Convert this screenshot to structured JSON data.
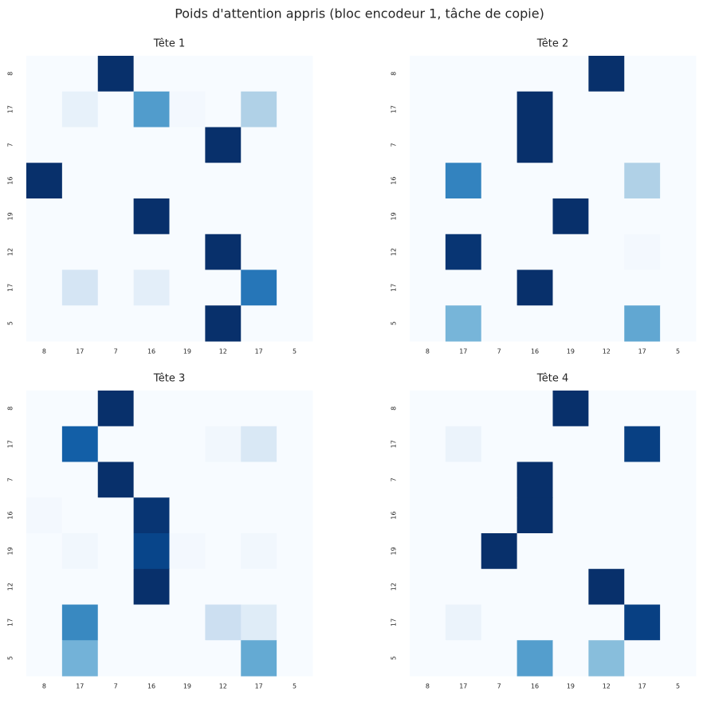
{
  "title": "Poids d'attention appris (bloc encodeur 1, tâche de copie)",
  "chart_data": [
    {
      "type": "heatmap",
      "title": "Tête 1",
      "colormap": "Blues",
      "x_categories": [
        "8",
        "17",
        "7",
        "16",
        "19",
        "12",
        "17",
        "5"
      ],
      "y_categories": [
        "8",
        "17",
        "7",
        "16",
        "19",
        "12",
        "17",
        "5"
      ],
      "values": [
        [
          0,
          0,
          1,
          0,
          0,
          0,
          0,
          0
        ],
        [
          0,
          0.08,
          0,
          0.58,
          0.02,
          0,
          0.32,
          0
        ],
        [
          0,
          0,
          0,
          0,
          0,
          1,
          0,
          0
        ],
        [
          1,
          0,
          0,
          0,
          0,
          0,
          0,
          0
        ],
        [
          0,
          0,
          0,
          1,
          0,
          0,
          0,
          0
        ],
        [
          0,
          0,
          0,
          0,
          0,
          1,
          0,
          0
        ],
        [
          0,
          0.17,
          0,
          0.1,
          0,
          0,
          0.73,
          0
        ],
        [
          0,
          0,
          0,
          0,
          0,
          1,
          0,
          0
        ]
      ]
    },
    {
      "type": "heatmap",
      "title": "Tête 2",
      "colormap": "Blues",
      "x_categories": [
        "8",
        "17",
        "7",
        "16",
        "19",
        "12",
        "17",
        "5"
      ],
      "y_categories": [
        "8",
        "17",
        "7",
        "16",
        "19",
        "12",
        "17",
        "5"
      ],
      "values": [
        [
          0,
          0,
          0,
          0,
          0,
          1,
          0,
          0
        ],
        [
          0,
          0,
          0,
          1,
          0,
          0,
          0,
          0
        ],
        [
          0,
          0,
          0,
          1,
          0,
          0,
          0,
          0
        ],
        [
          0,
          0.68,
          0,
          0,
          0,
          0,
          0.32,
          0
        ],
        [
          0,
          0,
          0,
          0,
          1,
          0,
          0,
          0
        ],
        [
          0,
          0.98,
          0,
          0,
          0,
          0,
          0.02,
          0
        ],
        [
          0,
          0,
          0,
          1,
          0,
          0,
          0,
          0
        ],
        [
          0,
          0.47,
          0,
          0,
          0,
          0,
          0.53,
          0
        ]
      ]
    },
    {
      "type": "heatmap",
      "title": "Tête 3",
      "colormap": "Blues",
      "x_categories": [
        "8",
        "17",
        "7",
        "16",
        "19",
        "12",
        "17",
        "5"
      ],
      "y_categories": [
        "8",
        "17",
        "7",
        "16",
        "19",
        "12",
        "17",
        "5"
      ],
      "values": [
        [
          0,
          0,
          1,
          0,
          0,
          0,
          0,
          0
        ],
        [
          0,
          0.82,
          0,
          0,
          0,
          0.03,
          0.15,
          0
        ],
        [
          0,
          0,
          1,
          0,
          0,
          0,
          0,
          0
        ],
        [
          0.02,
          0,
          0,
          0.98,
          0,
          0,
          0,
          0
        ],
        [
          0,
          0.03,
          0,
          0.92,
          0.02,
          0,
          0.03,
          0
        ],
        [
          0,
          0,
          0,
          1,
          0,
          0,
          0,
          0
        ],
        [
          0,
          0.66,
          0,
          0,
          0,
          0.22,
          0.12,
          0
        ],
        [
          0,
          0.48,
          0,
          0,
          0,
          0,
          0.52,
          0
        ]
      ]
    },
    {
      "type": "heatmap",
      "title": "Tête 4",
      "colormap": "Blues",
      "x_categories": [
        "8",
        "17",
        "7",
        "16",
        "19",
        "12",
        "17",
        "5"
      ],
      "y_categories": [
        "8",
        "17",
        "7",
        "16",
        "19",
        "12",
        "17",
        "5"
      ],
      "values": [
        [
          0,
          0,
          0,
          0,
          1,
          0,
          0,
          0
        ],
        [
          0,
          0.06,
          0,
          0,
          0,
          0,
          0.94,
          0
        ],
        [
          0,
          0,
          0,
          1,
          0,
          0,
          0,
          0
        ],
        [
          0,
          0,
          0,
          1,
          0,
          0,
          0,
          0
        ],
        [
          0,
          0,
          1,
          0,
          0,
          0,
          0,
          0
        ],
        [
          0,
          0,
          0,
          0,
          0,
          1,
          0,
          0
        ],
        [
          0,
          0.06,
          0,
          0,
          0,
          0,
          0.94,
          0
        ],
        [
          0,
          0,
          0,
          0.57,
          0,
          0.43,
          0,
          0
        ]
      ]
    }
  ]
}
